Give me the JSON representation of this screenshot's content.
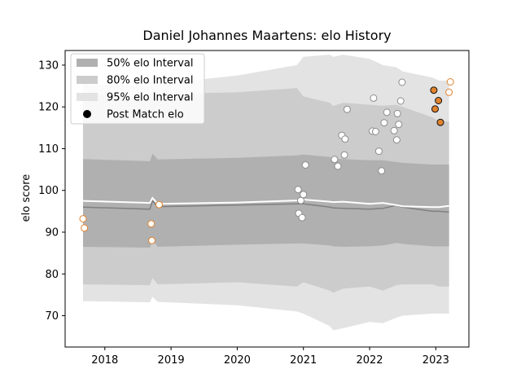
{
  "chart_data": {
    "type": "area",
    "title": "Daniel Johannes Maartens: elo History",
    "xlabel": "",
    "ylabel": "elo score",
    "xlim": [
      2017.4,
      2023.5
    ],
    "ylim": [
      62.5,
      133.5
    ],
    "x_ticks": [
      2018,
      2019,
      2020,
      2021,
      2022,
      2023
    ],
    "x_tick_labels": [
      "2018",
      "2019",
      "2020",
      "2021",
      "2022",
      "2023"
    ],
    "y_ticks": [
      70,
      80,
      90,
      100,
      110,
      120,
      130
    ],
    "y_tick_labels": [
      "70",
      "80",
      "90",
      "100",
      "110",
      "120",
      "130"
    ],
    "grid": false,
    "legend_position": "top-left",
    "legend": [
      {
        "label": "50% elo Interval",
        "kind": "band50"
      },
      {
        "label": "80% elo Interval",
        "kind": "band80"
      },
      {
        "label": "95% elo Interval",
        "kind": "band95"
      },
      {
        "label": "Post Match elo",
        "kind": "marker"
      }
    ],
    "band_x": [
      2017.67,
      2018.68,
      2018.72,
      2018.8,
      2020.0,
      2020.9,
      2021.0,
      2021.4,
      2021.45,
      2021.6,
      2022.0,
      2022.2,
      2022.4,
      2022.5,
      2022.95,
      2023.05,
      2023.2
    ],
    "mean": [
      96.0,
      95.5,
      97.5,
      96.1,
      96.5,
      96.8,
      96.8,
      96.0,
      95.8,
      95.7,
      95.5,
      95.7,
      96.4,
      96.0,
      95.0,
      95.0,
      94.8
    ],
    "median": [
      97.5,
      97.0,
      98.2,
      96.8,
      97.1,
      97.6,
      97.8,
      97.3,
      97.2,
      97.3,
      96.8,
      97.0,
      96.5,
      96.2,
      96.0,
      96.0,
      96.3
    ],
    "band50_low": [
      86.5,
      86.3,
      88.0,
      86.5,
      87.0,
      87.3,
      87.3,
      86.8,
      86.6,
      86.5,
      86.6,
      86.8,
      87.4,
      87.2,
      86.6,
      86.6,
      86.6
    ],
    "band50_high": [
      107.5,
      107.0,
      108.8,
      107.4,
      107.8,
      108.4,
      108.6,
      108.0,
      107.6,
      107.5,
      107.2,
      107.2,
      106.8,
      106.6,
      106.2,
      106.2,
      106.2
    ],
    "band80_low": [
      77.5,
      77.3,
      79.0,
      77.5,
      78.0,
      77.0,
      78.0,
      76.0,
      75.5,
      76.5,
      77.0,
      76.0,
      77.3,
      77.5,
      77.5,
      77.0,
      77.0
    ],
    "band80_high": [
      123.0,
      122.5,
      124.0,
      123.0,
      123.5,
      124.5,
      122.5,
      121.0,
      120.2,
      121.0,
      120.5,
      120.3,
      120.5,
      120.0,
      117.5,
      116.5,
      116.5
    ],
    "band95_low": [
      73.5,
      73.2,
      74.5,
      73.3,
      72.5,
      71.0,
      70.5,
      67.5,
      66.5,
      67.0,
      68.5,
      68.2,
      69.5,
      70.0,
      70.5,
      70.5,
      70.5
    ],
    "band95_high": [
      125.5,
      125.0,
      127.0,
      125.5,
      127.5,
      130.0,
      132.0,
      132.5,
      132.0,
      132.5,
      131.5,
      130.0,
      129.5,
      128.5,
      127.0,
      126.3,
      126.3
    ],
    "series": [
      {
        "name": "Post Match elo",
        "points": [
          {
            "x": 2017.67,
            "y": 93.2,
            "style": "orange-open"
          },
          {
            "x": 2017.69,
            "y": 91.0,
            "style": "orange-open"
          },
          {
            "x": 2018.7,
            "y": 92.0,
            "style": "orange-open"
          },
          {
            "x": 2018.71,
            "y": 88.0,
            "style": "orange-open"
          },
          {
            "x": 2018.82,
            "y": 96.6,
            "style": "orange-open"
          },
          {
            "x": 2020.92,
            "y": 100.2,
            "style": "grey-open"
          },
          {
            "x": 2020.93,
            "y": 94.5,
            "style": "grey-open"
          },
          {
            "x": 2020.96,
            "y": 97.6,
            "style": "grey-open"
          },
          {
            "x": 2020.98,
            "y": 93.5,
            "style": "grey-open"
          },
          {
            "x": 2021.0,
            "y": 99.0,
            "style": "grey-open"
          },
          {
            "x": 2021.03,
            "y": 106.1,
            "style": "grey-open"
          },
          {
            "x": 2021.47,
            "y": 107.4,
            "style": "grey-open"
          },
          {
            "x": 2021.52,
            "y": 105.8,
            "style": "grey-open"
          },
          {
            "x": 2021.58,
            "y": 113.2,
            "style": "grey-open"
          },
          {
            "x": 2021.62,
            "y": 108.5,
            "style": "grey-open"
          },
          {
            "x": 2021.63,
            "y": 112.3,
            "style": "grey-open"
          },
          {
            "x": 2021.66,
            "y": 119.4,
            "style": "grey-open"
          },
          {
            "x": 2022.04,
            "y": 114.2,
            "style": "grey-open"
          },
          {
            "x": 2022.06,
            "y": 122.1,
            "style": "grey-open"
          },
          {
            "x": 2022.09,
            "y": 114.1,
            "style": "grey-open"
          },
          {
            "x": 2022.14,
            "y": 109.4,
            "style": "grey-open"
          },
          {
            "x": 2022.18,
            "y": 104.7,
            "style": "grey-open"
          },
          {
            "x": 2022.22,
            "y": 116.2,
            "style": "grey-open"
          },
          {
            "x": 2022.26,
            "y": 118.7,
            "style": "grey-open"
          },
          {
            "x": 2022.37,
            "y": 114.3,
            "style": "grey-open"
          },
          {
            "x": 2022.41,
            "y": 112.1,
            "style": "grey-open"
          },
          {
            "x": 2022.42,
            "y": 118.4,
            "style": "grey-open"
          },
          {
            "x": 2022.44,
            "y": 115.8,
            "style": "grey-open"
          },
          {
            "x": 2022.47,
            "y": 121.4,
            "style": "grey-open"
          },
          {
            "x": 2022.49,
            "y": 125.9,
            "style": "grey-open"
          },
          {
            "x": 2022.97,
            "y": 124.0,
            "style": "orange-filled"
          },
          {
            "x": 2022.99,
            "y": 119.5,
            "style": "orange-filled"
          },
          {
            "x": 2023.04,
            "y": 121.5,
            "style": "orange-filled"
          },
          {
            "x": 2023.07,
            "y": 116.3,
            "style": "orange-filled"
          },
          {
            "x": 2023.2,
            "y": 123.5,
            "style": "orange-open"
          },
          {
            "x": 2023.22,
            "y": 126.0,
            "style": "orange-open"
          }
        ]
      }
    ],
    "colors": {
      "band95": "#e3e3e3",
      "band80": "#cccccc",
      "band50": "#b0b0b0",
      "mean_line": "#808080",
      "median_line": "#ffffff",
      "orange": "#e0822e",
      "grey_edge": "#8c8c8c",
      "filled_edge": "#111111"
    }
  }
}
